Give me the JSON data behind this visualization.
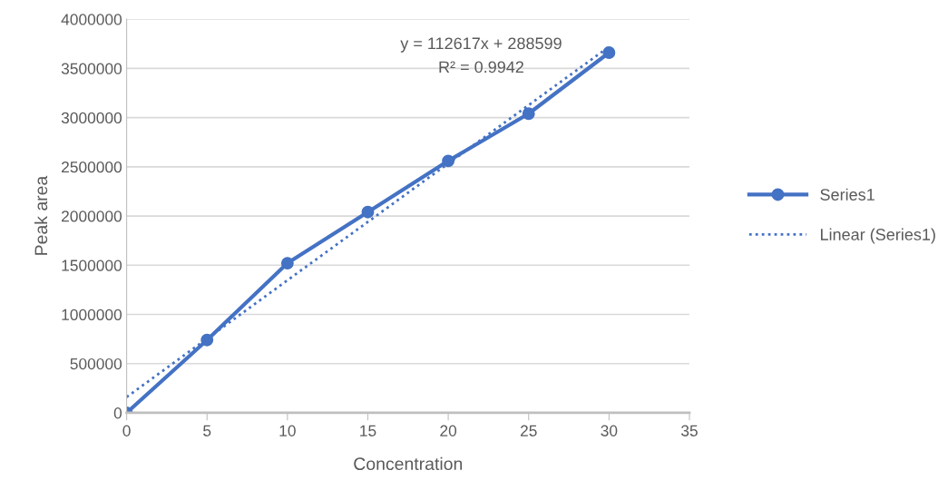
{
  "chart_data": {
    "type": "line",
    "xlabel": "Concentration",
    "ylabel": "Peak area",
    "x": [
      0,
      5,
      10,
      15,
      20,
      25,
      30
    ],
    "series": [
      {
        "name": "Series1",
        "color": "#4472c4",
        "values": [
          0,
          740000,
          1520000,
          2040000,
          2560000,
          3040000,
          3660000
        ],
        "marker": "circle",
        "line_style": "solid"
      },
      {
        "name": "Linear (Series1)",
        "color": "#4472c4",
        "x": [
          0,
          30
        ],
        "values": [
          160000,
          3720000
        ],
        "marker": "none",
        "line_style": "dotted"
      }
    ],
    "annotations": [
      "y = 112617x + 288599",
      "R² = 0.9942"
    ],
    "xlim": [
      0,
      35
    ],
    "xticks": [
      0,
      5,
      10,
      15,
      20,
      25,
      30,
      35
    ],
    "ylim": [
      0,
      4000000
    ],
    "yticks": [
      0,
      500000,
      1000000,
      1500000,
      2000000,
      2500000,
      3000000,
      3500000,
      4000000
    ],
    "grid": "y",
    "legend": "right"
  }
}
